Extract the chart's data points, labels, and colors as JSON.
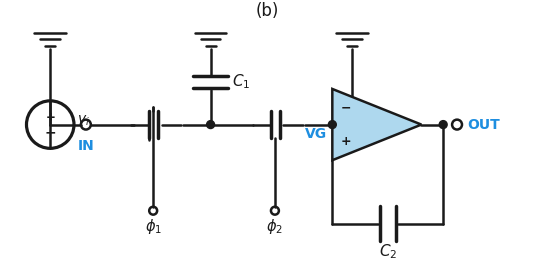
{
  "background": "#ffffff",
  "line_color": "#1a1a1a",
  "blue_color": "#1E8EE0",
  "light_blue": "#AED8EE",
  "fig_width": 5.34,
  "fig_height": 2.78,
  "caption": "(b)",
  "label_IN": "IN",
  "label_OUT": "OUT",
  "label_VG": "VG",
  "label_vi": "$v_i$",
  "label_C1": "$C_1$",
  "label_C2": "$C_2$",
  "label_phi1": "$\\phi_1$",
  "label_phi2": "$\\phi_2$",
  "label_minus": "−",
  "label_plus": "+"
}
